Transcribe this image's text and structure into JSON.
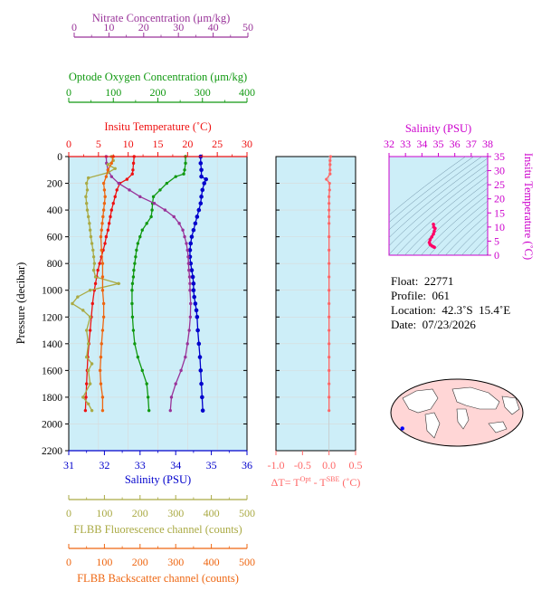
{
  "colors": {
    "nitrate": "#993399",
    "oxygen": "#119911",
    "temperature": "#ee1111",
    "salinity": "#0000cc",
    "fluorescence": "#aaaa44",
    "backscatter": "#ee6611",
    "delta_t": "#ff6666",
    "ts_axis": "#cc00cc",
    "ts_profile": "#ff0066",
    "panel_bg": "#cdeef8"
  },
  "axes": {
    "nitrate": {
      "title": "Nitrate Concentration (μm/kg)",
      "ticks": [
        "0",
        "10",
        "20",
        "30",
        "40",
        "50"
      ]
    },
    "oxygen": {
      "title": "Optode Oxygen Concentration (μm/kg)",
      "ticks": [
        "0",
        "100",
        "200",
        "300",
        "400"
      ]
    },
    "temperature": {
      "title": "Insitu Temperature (˚C)",
      "ticks": [
        "0",
        "5",
        "10",
        "15",
        "20",
        "25",
        "30"
      ]
    },
    "salinity": {
      "title": "Salinity (PSU)",
      "ticks": [
        "31",
        "32",
        "33",
        "34",
        "35",
        "36"
      ]
    },
    "pressure": {
      "title": "Pressure (decibar)",
      "ticks": [
        "0",
        "200",
        "400",
        "600",
        "800",
        "1000",
        "1200",
        "1400",
        "1600",
        "1800",
        "2000",
        "2200"
      ]
    },
    "fluorescence": {
      "title": "FLBB Fluorescence channel (counts)",
      "ticks": [
        "0",
        "100",
        "200",
        "300",
        "400",
        "500"
      ]
    },
    "backscatter": {
      "title": "FLBB Backscatter channel (counts)",
      "ticks": [
        "0",
        "100",
        "200",
        "300",
        "400",
        "500"
      ]
    },
    "delta_t": {
      "title_main": "ΔT= T",
      "sup1": "Opt",
      "title_mid": " - T",
      "sup2": "SBE",
      "title_end": " (˚C)",
      "ticks": [
        "-1.0",
        "-0.5",
        "0.0",
        "0.5"
      ]
    },
    "ts_salinity": {
      "title": "Salinity (PSU)",
      "ticks": [
        "32",
        "33",
        "34",
        "35",
        "36",
        "37",
        "38"
      ]
    },
    "ts_temperature": {
      "title": "Insitu Temperature (˚C)",
      "ticks": [
        "0",
        "5",
        "10",
        "15",
        "20",
        "25",
        "30",
        "35"
      ]
    }
  },
  "info": {
    "float": "Float:  22771",
    "profile": "Profile:  061",
    "location": "Location:  42.3˚S  15.4˚E",
    "date": "Date:  07/23/2026"
  },
  "chart_data": {
    "type": "line",
    "y": "pressure",
    "ylim": [
      2200,
      0
    ],
    "series": [
      {
        "key": "salinity",
        "xlim": [
          31,
          36
        ],
        "points": [
          [
            34.7,
            0
          ],
          [
            34.7,
            50
          ],
          [
            34.72,
            100
          ],
          [
            34.72,
            150
          ],
          [
            34.85,
            170
          ],
          [
            34.8,
            200
          ],
          [
            34.75,
            250
          ],
          [
            34.72,
            300
          ],
          [
            34.7,
            350
          ],
          [
            34.65,
            400
          ],
          [
            34.6,
            450
          ],
          [
            34.55,
            500
          ],
          [
            34.5,
            550
          ],
          [
            34.45,
            600
          ],
          [
            34.42,
            650
          ],
          [
            34.4,
            700
          ],
          [
            34.4,
            750
          ],
          [
            34.42,
            800
          ],
          [
            34.45,
            850
          ],
          [
            34.48,
            900
          ],
          [
            34.5,
            950
          ],
          [
            34.5,
            1000
          ],
          [
            34.52,
            1050
          ],
          [
            34.55,
            1100
          ],
          [
            34.58,
            1150
          ],
          [
            34.6,
            1200
          ],
          [
            34.62,
            1300
          ],
          [
            34.65,
            1400
          ],
          [
            34.68,
            1500
          ],
          [
            34.7,
            1600
          ],
          [
            34.72,
            1700
          ],
          [
            34.74,
            1800
          ],
          [
            34.76,
            1900
          ]
        ]
      },
      {
        "key": "temperature",
        "xlim": [
          0,
          30
        ],
        "points": [
          [
            11.0,
            0
          ],
          [
            10.9,
            50
          ],
          [
            10.8,
            100
          ],
          [
            10.7,
            130
          ],
          [
            9.8,
            170
          ],
          [
            8.6,
            200
          ],
          [
            8.1,
            250
          ],
          [
            7.8,
            300
          ],
          [
            7.5,
            350
          ],
          [
            7.2,
            400
          ],
          [
            7.0,
            450
          ],
          [
            6.8,
            500
          ],
          [
            6.6,
            550
          ],
          [
            6.3,
            600
          ],
          [
            6.1,
            650
          ],
          [
            5.8,
            700
          ],
          [
            5.5,
            750
          ],
          [
            5.2,
            800
          ],
          [
            4.9,
            850
          ],
          [
            4.7,
            900
          ],
          [
            4.5,
            950
          ],
          [
            4.3,
            1000
          ],
          [
            4.0,
            1100
          ],
          [
            3.8,
            1200
          ],
          [
            3.6,
            1300
          ],
          [
            3.4,
            1400
          ],
          [
            3.2,
            1500
          ],
          [
            3.1,
            1600
          ],
          [
            3.0,
            1700
          ],
          [
            2.9,
            1800
          ],
          [
            2.8,
            1900
          ]
        ]
      },
      {
        "key": "oxygen",
        "xlim": [
          0,
          400
        ],
        "points": [
          [
            262,
            0
          ],
          [
            262,
            50
          ],
          [
            260,
            100
          ],
          [
            258,
            130
          ],
          [
            240,
            150
          ],
          [
            220,
            200
          ],
          [
            205,
            250
          ],
          [
            190,
            300
          ],
          [
            188,
            350
          ],
          [
            187,
            400
          ],
          [
            185,
            450
          ],
          [
            175,
            500
          ],
          [
            165,
            550
          ],
          [
            160,
            600
          ],
          [
            155,
            650
          ],
          [
            152,
            700
          ],
          [
            150,
            750
          ],
          [
            148,
            800
          ],
          [
            146,
            850
          ],
          [
            145,
            900
          ],
          [
            143,
            950
          ],
          [
            142,
            1000
          ],
          [
            142,
            1100
          ],
          [
            143,
            1200
          ],
          [
            145,
            1300
          ],
          [
            148,
            1400
          ],
          [
            155,
            1500
          ],
          [
            165,
            1600
          ],
          [
            175,
            1700
          ],
          [
            178,
            1800
          ],
          [
            180,
            1900
          ]
        ]
      },
      {
        "key": "nitrate",
        "xlim": [
          0,
          50
        ],
        "points": [
          [
            10.5,
            0
          ],
          [
            10.6,
            50
          ],
          [
            11.0,
            100
          ],
          [
            12.0,
            150
          ],
          [
            14.0,
            200
          ],
          [
            17.0,
            250
          ],
          [
            20.0,
            300
          ],
          [
            24.0,
            350
          ],
          [
            27.0,
            400
          ],
          [
            29.5,
            450
          ],
          [
            31.0,
            500
          ],
          [
            32.0,
            550
          ],
          [
            32.5,
            600
          ],
          [
            33.0,
            650
          ],
          [
            33.3,
            700
          ],
          [
            33.5,
            750
          ],
          [
            33.6,
            800
          ],
          [
            33.7,
            850
          ],
          [
            33.9,
            900
          ],
          [
            34.0,
            950
          ],
          [
            34.0,
            1000
          ],
          [
            34.2,
            1100
          ],
          [
            34.1,
            1200
          ],
          [
            33.8,
            1300
          ],
          [
            33.3,
            1400
          ],
          [
            32.7,
            1500
          ],
          [
            31.5,
            1600
          ],
          [
            30.0,
            1700
          ],
          [
            28.8,
            1800
          ],
          [
            28.5,
            1900
          ]
        ]
      },
      {
        "key": "fluorescence",
        "xlim": [
          0,
          500
        ],
        "points": [
          [
            120,
            0
          ],
          [
            125,
            30
          ],
          [
            110,
            60
          ],
          [
            130,
            90
          ],
          [
            110,
            120
          ],
          [
            55,
            160
          ],
          [
            50,
            200
          ],
          [
            52,
            250
          ],
          [
            48,
            300
          ],
          [
            50,
            350
          ],
          [
            52,
            400
          ],
          [
            55,
            450
          ],
          [
            58,
            500
          ],
          [
            60,
            550
          ],
          [
            62,
            600
          ],
          [
            65,
            650
          ],
          [
            68,
            700
          ],
          [
            70,
            750
          ],
          [
            72,
            800
          ],
          [
            70,
            850
          ],
          [
            75,
            900
          ],
          [
            140,
            950
          ],
          [
            60,
            1000
          ],
          [
            25,
            1050
          ],
          [
            10,
            1100
          ],
          [
            40,
            1150
          ],
          [
            60,
            1200
          ],
          [
            50,
            1300
          ],
          [
            55,
            1400
          ],
          [
            50,
            1500
          ],
          [
            65,
            1550
          ],
          [
            55,
            1600
          ],
          [
            60,
            1700
          ],
          [
            40,
            1800
          ],
          [
            55,
            1850
          ],
          [
            65,
            1900
          ]
        ]
      },
      {
        "key": "backscatter",
        "xlim": [
          0,
          500
        ],
        "points": [
          [
            125,
            0
          ],
          [
            120,
            50
          ],
          [
            110,
            100
          ],
          [
            105,
            150
          ],
          [
            98,
            200
          ],
          [
            100,
            250
          ],
          [
            102,
            300
          ],
          [
            100,
            350
          ],
          [
            98,
            400
          ],
          [
            96,
            450
          ],
          [
            94,
            500
          ],
          [
            92,
            550
          ],
          [
            90,
            600
          ],
          [
            92,
            700
          ],
          [
            95,
            800
          ],
          [
            95,
            900
          ],
          [
            95,
            1000
          ],
          [
            98,
            1100
          ],
          [
            98,
            1200
          ],
          [
            95,
            1300
          ],
          [
            92,
            1400
          ],
          [
            90,
            1500
          ],
          [
            88,
            1600
          ],
          [
            90,
            1700
          ],
          [
            95,
            1800
          ],
          [
            95,
            1900
          ]
        ]
      },
      {
        "key": "delta_t",
        "xlim": [
          -1.0,
          0.5
        ],
        "points": [
          [
            0.03,
            0
          ],
          [
            0.02,
            30
          ],
          [
            0.02,
            60
          ],
          [
            0.02,
            100
          ],
          [
            0.02,
            130
          ],
          [
            -0.05,
            170
          ],
          [
            0.01,
            200
          ],
          [
            0.01,
            250
          ],
          [
            0.0,
            300
          ],
          [
            0.0,
            350
          ],
          [
            0.0,
            400
          ],
          [
            0.0,
            450
          ],
          [
            0.0,
            500
          ],
          [
            0.0,
            600
          ],
          [
            0.0,
            700
          ],
          [
            0.0,
            800
          ],
          [
            0.0,
            900
          ],
          [
            0.0,
            1000
          ],
          [
            0.0,
            1100
          ],
          [
            0.0,
            1200
          ],
          [
            0.0,
            1300
          ],
          [
            0.0,
            1400
          ],
          [
            0.0,
            1500
          ],
          [
            0.0,
            1600
          ],
          [
            0.0,
            1700
          ],
          [
            0.0,
            1800
          ],
          [
            0.0,
            1900
          ]
        ]
      }
    ],
    "ts_diagram": {
      "xlim": [
        32,
        38
      ],
      "ylim": [
        0,
        35
      ],
      "points": [
        [
          34.7,
          11
        ],
        [
          34.72,
          10
        ],
        [
          34.8,
          9.5
        ],
        [
          34.75,
          8.5
        ],
        [
          34.7,
          7.5
        ],
        [
          34.6,
          6.5
        ],
        [
          34.5,
          5.5
        ],
        [
          34.45,
          4.5
        ],
        [
          34.5,
          3.8
        ],
        [
          34.6,
          3.3
        ],
        [
          34.7,
          3.0
        ],
        [
          34.76,
          2.8
        ]
      ]
    },
    "map": {
      "marker": {
        "lat": -42.3,
        "lon": 15.4
      }
    }
  }
}
